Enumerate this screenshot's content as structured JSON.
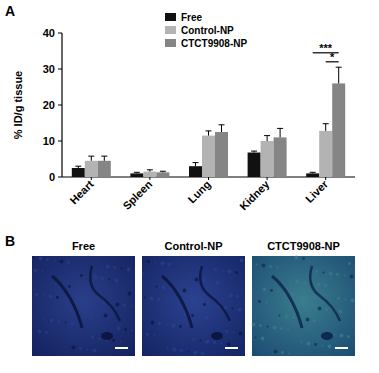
{
  "chart_data": {
    "type": "bar",
    "panel_label": "A",
    "y_label": "% ID/g tissue",
    "categories": [
      "Heart",
      "Spleen",
      "Lung",
      "Kidney",
      "Liver"
    ],
    "series": [
      {
        "name": "Free",
        "color": "#111111",
        "values": [
          2.5,
          1.0,
          3.0,
          6.8,
          1.0
        ],
        "errors": [
          0.5,
          0.3,
          1.0,
          0.4,
          0.3
        ]
      },
      {
        "name": "Control-NP",
        "color": "#b3b3b3",
        "values": [
          4.5,
          1.5,
          11.5,
          10.0,
          12.8
        ],
        "errors": [
          1.3,
          0.5,
          1.3,
          1.5,
          2.0
        ]
      },
      {
        "name": "CTCT9908-NP",
        "color": "#858585",
        "values": [
          4.5,
          1.3,
          12.5,
          11.0,
          26.0
        ],
        "errors": [
          1.3,
          0.3,
          2.0,
          2.5,
          4.5
        ]
      }
    ],
    "annotations": [
      {
        "text": "***",
        "category": "Liver",
        "between": [
          "Free",
          "CTCT9908-NP"
        ]
      },
      {
        "text": "*",
        "category": "Liver",
        "between": [
          "Control-NP",
          "CTCT9908-NP"
        ]
      }
    ],
    "ylim": [
      0,
      40
    ],
    "yticks": [
      0,
      10,
      20,
      30,
      40
    ],
    "legend": "top",
    "grid": false
  },
  "panel_b": {
    "label": "B",
    "images": [
      {
        "title": "Free"
      },
      {
        "title": "Control-NP"
      },
      {
        "title": "CTCT9908-NP"
      }
    ]
  }
}
